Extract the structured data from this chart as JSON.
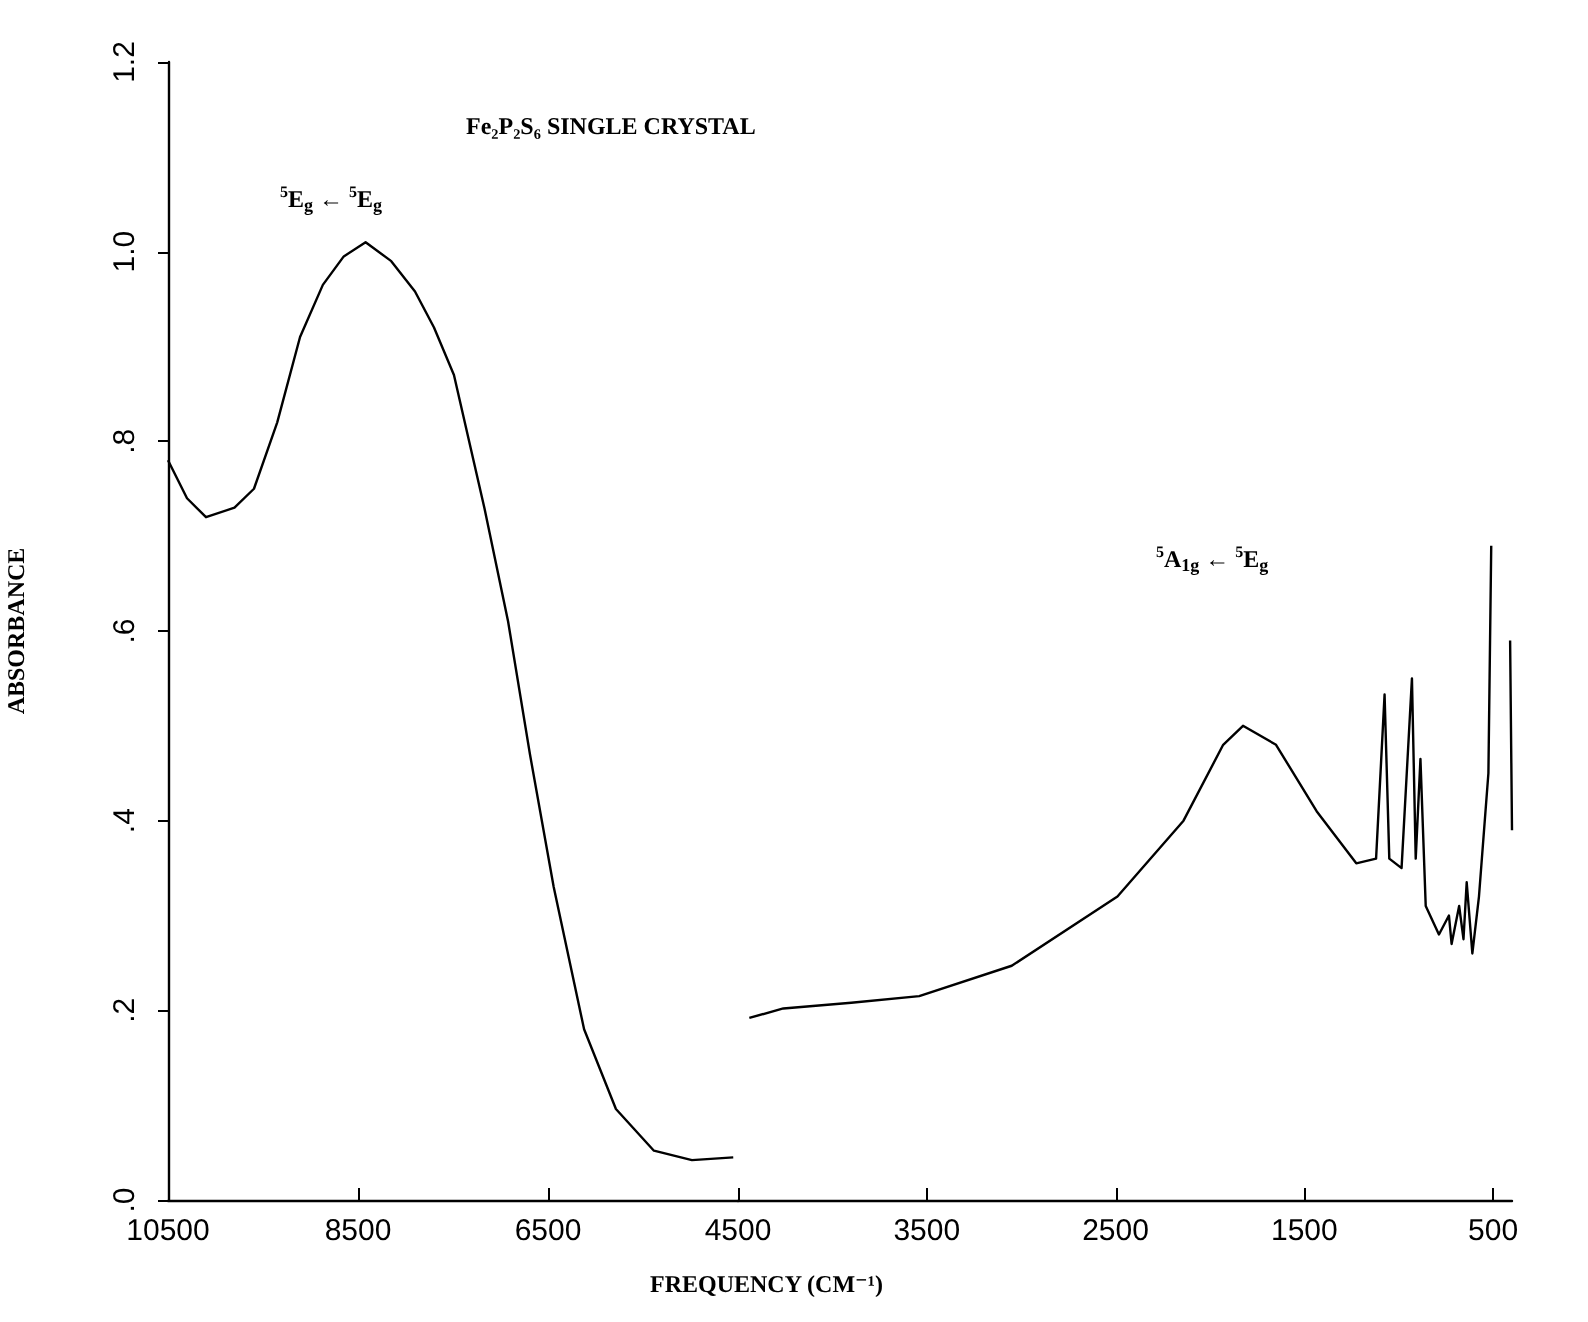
{
  "chart_data": [
    {
      "type": "line",
      "title": "Fe₂P₂S₆ SINGLE CRYSTAL",
      "ylabel": "ABSORBANCE",
      "annotations": [
        "$^{5}$E$_{g}$ ← $^{5}$E$_{g}$"
      ],
      "marker": "none",
      "line_style": "solid",
      "xlim": [
        10500,
        4500
      ],
      "xticks": [
        10500,
        8500,
        6500,
        4500
      ],
      "ylim": [
        0,
        1.2
      ],
      "yticks": [
        {
          "value": 0,
          "label": ".0"
        },
        {
          "value": 0.2,
          "label": ".2"
        },
        {
          "value": 0.4,
          "label": ".4"
        },
        {
          "value": 0.6,
          "label": ".6"
        },
        {
          "value": 0.8,
          "label": ".8"
        },
        {
          "value": 1,
          "label": "1.0"
        },
        {
          "value": 1.2,
          "label": "1.2"
        }
      ],
      "series": [
        {
          "color": "#000000",
          "x": [
            10500,
            10300,
            10100,
            9800,
            9595,
            9350,
            9110,
            8870,
            8650,
            8420,
            8150,
            7900,
            7700,
            7490,
            7170,
            6920,
            6690,
            6440,
            6120,
            5785,
            5385,
            4985,
            4550
          ],
          "values": [
            0.78,
            0.74,
            0.72,
            0.73,
            0.75,
            0.82,
            0.91,
            0.965,
            0.995,
            1.01,
            0.99,
            0.958,
            0.92,
            0.87,
            0.73,
            0.61,
            0.47,
            0.33,
            0.18,
            0.096,
            0.052,
            0.042,
            0.045
          ]
        }
      ]
    },
    {
      "type": "line",
      "xlabel": "FREQUENCY (CM⁻¹)",
      "annotations": [
        "$^{5}$A$_{1g}$ ← $^{5}$E$_{g}$"
      ],
      "marker": "none",
      "line_style": "solid",
      "tick_labels": "x",
      "xlim": [
        4500,
        400
      ],
      "xticks": [
        3500,
        2500,
        1500,
        500
      ],
      "ylim": [
        0,
        1.2
      ],
      "series": [
        {
          "color": "#000000",
          "x": [
            4440,
            4260,
            3900,
            3540,
            3050,
            2490,
            2140,
            1930,
            1825,
            1650,
            1435,
            1225,
            1120,
            1075,
            1050,
            985,
            930,
            910,
            885,
            857,
            787,
            734,
            720,
            680,
            657,
            640,
            610,
            575,
            525,
            510,
            495,
            435,
            410,
            400
          ],
          "values": [
            0.192,
            0.202,
            0.208,
            0.215,
            0.247,
            0.32,
            0.4,
            0.48,
            0.5,
            0.48,
            0.41,
            0.355,
            0.36,
            0.533,
            0.36,
            0.35,
            0.55,
            0.36,
            0.465,
            0.31,
            0.28,
            0.3,
            0.27,
            0.31,
            0.275,
            0.335,
            0.26,
            0.32,
            0.45,
            0.69,
            null,
            null,
            0.59,
            0.39
          ]
        }
      ]
    }
  ]
}
